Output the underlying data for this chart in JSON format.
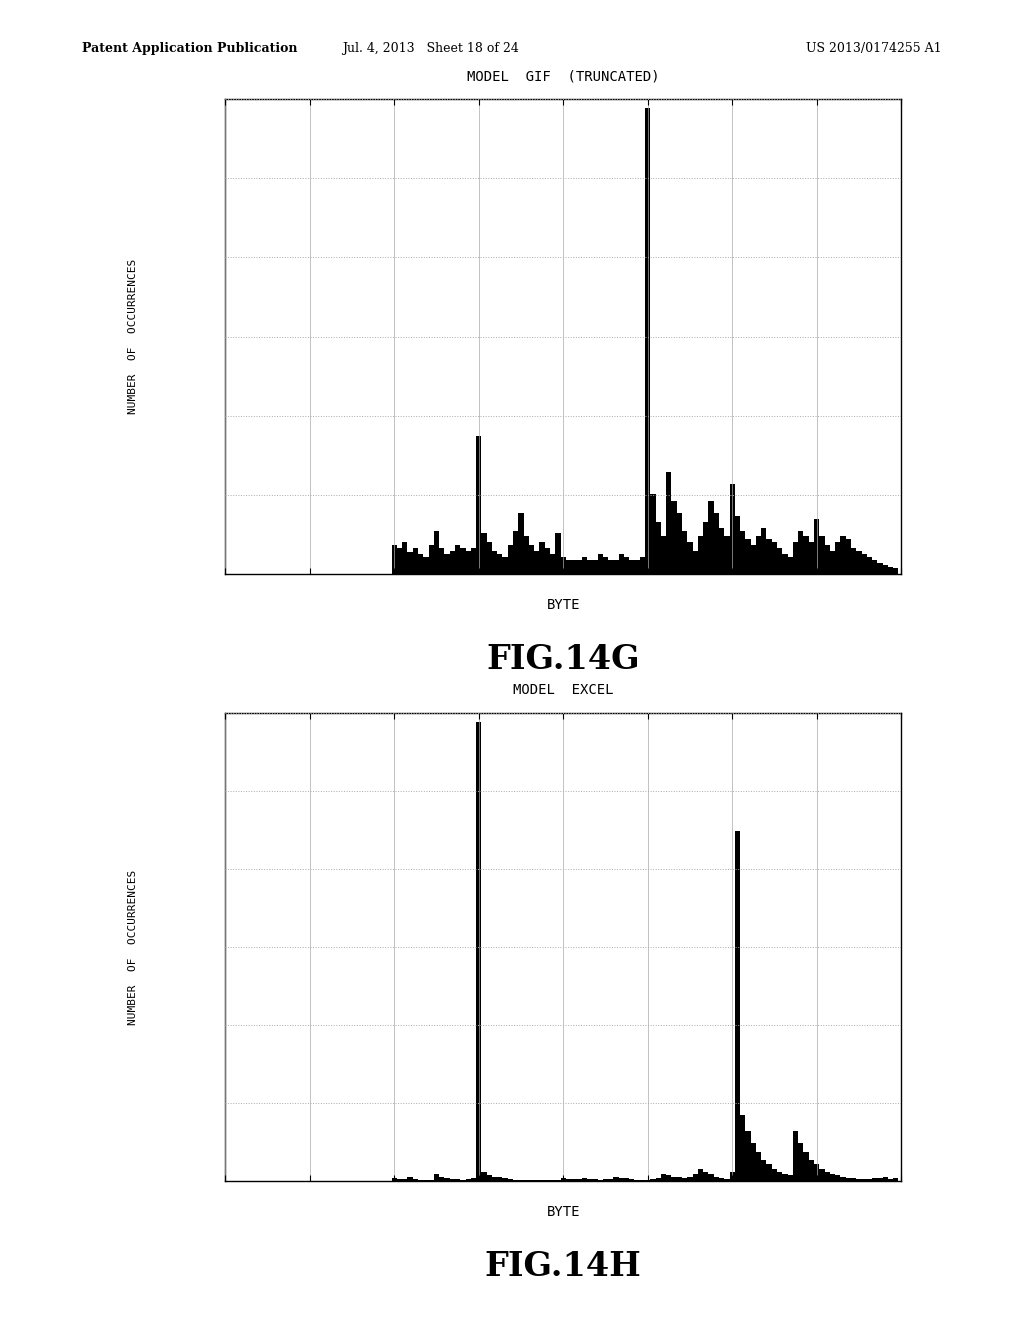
{
  "header_left": "Patent Application Publication",
  "header_mid": "Jul. 4, 2013   Sheet 18 of 24",
  "header_right": "US 2013/0174255 A1",
  "chart1": {
    "title": "MODEL  GIF  (TRUNCATED)",
    "xlabel": "BYTE",
    "ylabel": "NUMBER  OF  OCCURRENCES",
    "fig_label": "FIG.14G",
    "bar_color": "#000000",
    "grid_color": "#aaaaaa",
    "values": [
      0,
      0,
      0,
      0,
      0,
      0,
      0,
      0,
      0,
      0,
      0,
      0,
      0,
      0,
      0,
      0,
      0,
      0,
      0,
      0,
      0,
      0,
      0,
      0,
      0,
      0,
      0,
      0,
      0,
      0,
      0,
      0,
      20,
      18,
      22,
      15,
      18,
      14,
      12,
      20,
      30,
      18,
      14,
      16,
      20,
      18,
      16,
      18,
      95,
      28,
      22,
      16,
      14,
      12,
      20,
      30,
      42,
      26,
      20,
      16,
      22,
      18,
      14,
      28,
      12,
      10,
      10,
      10,
      12,
      10,
      10,
      14,
      12,
      10,
      10,
      14,
      12,
      10,
      10,
      12,
      320,
      55,
      36,
      26,
      70,
      50,
      42,
      30,
      22,
      16,
      26,
      36,
      50,
      42,
      32,
      26,
      62,
      40,
      30,
      24,
      20,
      26,
      32,
      24,
      22,
      18,
      14,
      12,
      22,
      30,
      26,
      22,
      38,
      26,
      20,
      16,
      22,
      26,
      24,
      18,
      16,
      14,
      12,
      10,
      8,
      6,
      5,
      4
    ]
  },
  "chart2": {
    "title": "MODEL  EXCEL",
    "xlabel": "BYTE",
    "ylabel": "NUMBER  OF  OCCURRENCES",
    "fig_label": "FIG.14H",
    "bar_color": "#000000",
    "grid_color": "#aaaaaa",
    "values": [
      0,
      0,
      0,
      0,
      0,
      0,
      0,
      0,
      0,
      0,
      0,
      0,
      0,
      0,
      0,
      0,
      0,
      0,
      0,
      0,
      0,
      0,
      0,
      0,
      0,
      0,
      0,
      0,
      0,
      0,
      0,
      0,
      3,
      2,
      2,
      4,
      2,
      1,
      1,
      1,
      6,
      4,
      3,
      2,
      2,
      1,
      2,
      3,
      380,
      8,
      5,
      4,
      4,
      3,
      2,
      1,
      1,
      1,
      1,
      1,
      1,
      1,
      1,
      1,
      3,
      2,
      2,
      2,
      3,
      2,
      2,
      1,
      2,
      2,
      4,
      3,
      3,
      2,
      1,
      1,
      1,
      2,
      3,
      6,
      5,
      4,
      4,
      3,
      4,
      6,
      10,
      8,
      6,
      4,
      3,
      2,
      8,
      290,
      55,
      42,
      32,
      24,
      18,
      14,
      10,
      8,
      6,
      5,
      42,
      32,
      24,
      18,
      14,
      10,
      8,
      6,
      5,
      4,
      3,
      3,
      2,
      2,
      2,
      3,
      3,
      4,
      2,
      3
    ]
  },
  "background_color": "#ffffff",
  "text_color": "#000000"
}
